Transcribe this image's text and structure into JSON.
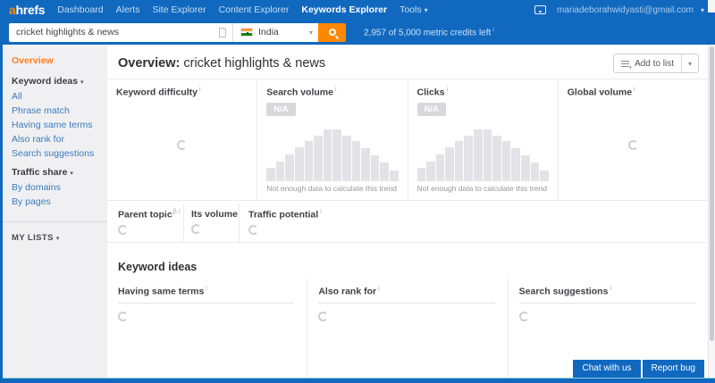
{
  "topnav": {
    "logo_a": "a",
    "logo_rest": "hrefs",
    "items": [
      "Dashboard",
      "Alerts",
      "Site Explorer",
      "Content Explorer",
      "Keywords Explorer"
    ],
    "tools_label": "Tools",
    "email": "mariadeborahwidyasti@gmail.com"
  },
  "searchbar": {
    "query": "cricket highlights & news",
    "country": "India",
    "credits": "2,957 of 5,000 metric credits left"
  },
  "sidebar": {
    "overview_label": "Overview",
    "keyword_ideas_label": "Keyword ideas",
    "keyword_ideas_links": [
      "All",
      "Phrase match",
      "Having same terms",
      "Also rank for",
      "Search suggestions"
    ],
    "traffic_share_label": "Traffic share",
    "traffic_share_links": [
      "By domains",
      "By pages"
    ],
    "my_lists_label": "MY LISTS"
  },
  "header": {
    "title_prefix": "Overview:",
    "title_keyword": "cricket highlights & news",
    "add_to_list_label": "Add to list"
  },
  "metrics": {
    "cards": [
      {
        "title": "Keyword difficulty",
        "state": "loading"
      },
      {
        "title": "Search volume",
        "badge": "N/A",
        "caption": "Not enough data to calculate this trend"
      },
      {
        "title": "Clicks",
        "badge": "N/A",
        "caption": "Not enough data to calculate this trend"
      },
      {
        "title": "Global volume",
        "state": "loading"
      }
    ],
    "substats": [
      {
        "title": "Parent topic",
        "sup": "β"
      },
      {
        "title": "Its volume"
      },
      {
        "title": "Traffic potential"
      }
    ]
  },
  "keyword_ideas": {
    "heading": "Keyword ideas",
    "columns": [
      {
        "title": "Having same terms"
      },
      {
        "title": "Also rank for"
      },
      {
        "title": "Search suggestions"
      }
    ]
  },
  "footer": {
    "chat_label": "Chat with us",
    "report_label": "Report bug"
  },
  "colors": {
    "brand_blue": "#1169bf",
    "brand_orange": "#ff8800",
    "active_link_orange": "#ff7d1f",
    "sidebar_link_blue": "#3a7cbb",
    "bar_fill": "#e3e3e7",
    "na_badge_bg": "#d8d8dc"
  },
  "chart_data": {
    "type": "bar",
    "caption": "Not enough data to calculate this trend",
    "values": [
      22,
      33,
      45,
      57,
      67,
      76,
      86,
      86,
      76,
      67,
      55,
      43,
      31,
      18
    ]
  }
}
